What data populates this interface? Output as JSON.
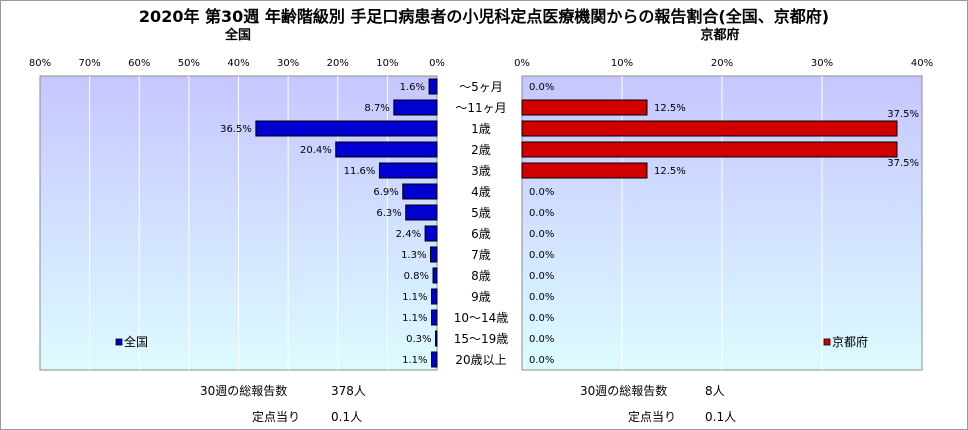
{
  "title": "2020年 第30週 年齢階級別 手足口病患者の小児科定点医療機関からの報告割合(全国、京都府)",
  "colors": {
    "national": "#0000d0",
    "kyoto": "#d00000",
    "plot_top": "#c6c6ff",
    "plot_bottom": "#ddfbff"
  },
  "chart_data": [
    {
      "type": "bar",
      "title": "全国",
      "orientation": "horizontal",
      "direction": "right-to-left",
      "xlim": [
        0,
        80
      ],
      "ticks": [
        "80%",
        "70%",
        "60%",
        "50%",
        "40%",
        "30%",
        "20%",
        "10%",
        "0%"
      ],
      "categories": [
        "～5ヶ月",
        "～11ヶ月",
        "1歳",
        "2歳",
        "3歳",
        "4歳",
        "5歳",
        "6歳",
        "7歳",
        "8歳",
        "9歳",
        "10～14歳",
        "15～19歳",
        "20歳以上"
      ],
      "series": [
        {
          "name": "全国",
          "values": [
            1.6,
            8.7,
            36.5,
            20.4,
            11.6,
            6.9,
            6.3,
            2.4,
            1.3,
            0.8,
            1.1,
            1.1,
            0.3,
            1.1
          ],
          "labels": [
            "1.6%",
            "8.7%",
            "36.5%",
            "20.4%",
            "11.6%",
            "6.9%",
            "6.3%",
            "2.4%",
            "1.3%",
            "0.8%",
            "1.1%",
            "1.1%",
            "0.3%",
            "1.1%"
          ]
        }
      ],
      "legend_position": "bottom-left",
      "grid": true
    },
    {
      "type": "bar",
      "title": "京都府",
      "orientation": "horizontal",
      "direction": "left-to-right",
      "xlim": [
        0,
        40
      ],
      "ticks": [
        "0%",
        "10%",
        "20%",
        "30%",
        "40%"
      ],
      "categories": [
        "～5ヶ月",
        "～11ヶ月",
        "1歳",
        "2歳",
        "3歳",
        "4歳",
        "5歳",
        "6歳",
        "7歳",
        "8歳",
        "9歳",
        "10～14歳",
        "15～19歳",
        "20歳以上"
      ],
      "series": [
        {
          "name": "京都府",
          "values": [
            0,
            12.5,
            37.5,
            37.5,
            12.5,
            0,
            0,
            0,
            0,
            0,
            0,
            0,
            0,
            0
          ],
          "labels": [
            "0.0%",
            "12.5%",
            "37.5%",
            "37.5%",
            "12.5%",
            "0.0%",
            "0.0%",
            "0.0%",
            "0.0%",
            "0.0%",
            "0.0%",
            "0.0%",
            "0.0%",
            "0.0%"
          ]
        }
      ],
      "legend_position": "bottom-right",
      "grid": true
    }
  ],
  "footer": {
    "left": {
      "reports_label": "30週の総報告数",
      "reports_value": "378人",
      "per_site_label": "定点当り",
      "per_site_value": "0.1人"
    },
    "right": {
      "reports_label": "30週の総報告数",
      "reports_value": "8人",
      "per_site_label": "定点当り",
      "per_site_value": "0.1人"
    }
  }
}
